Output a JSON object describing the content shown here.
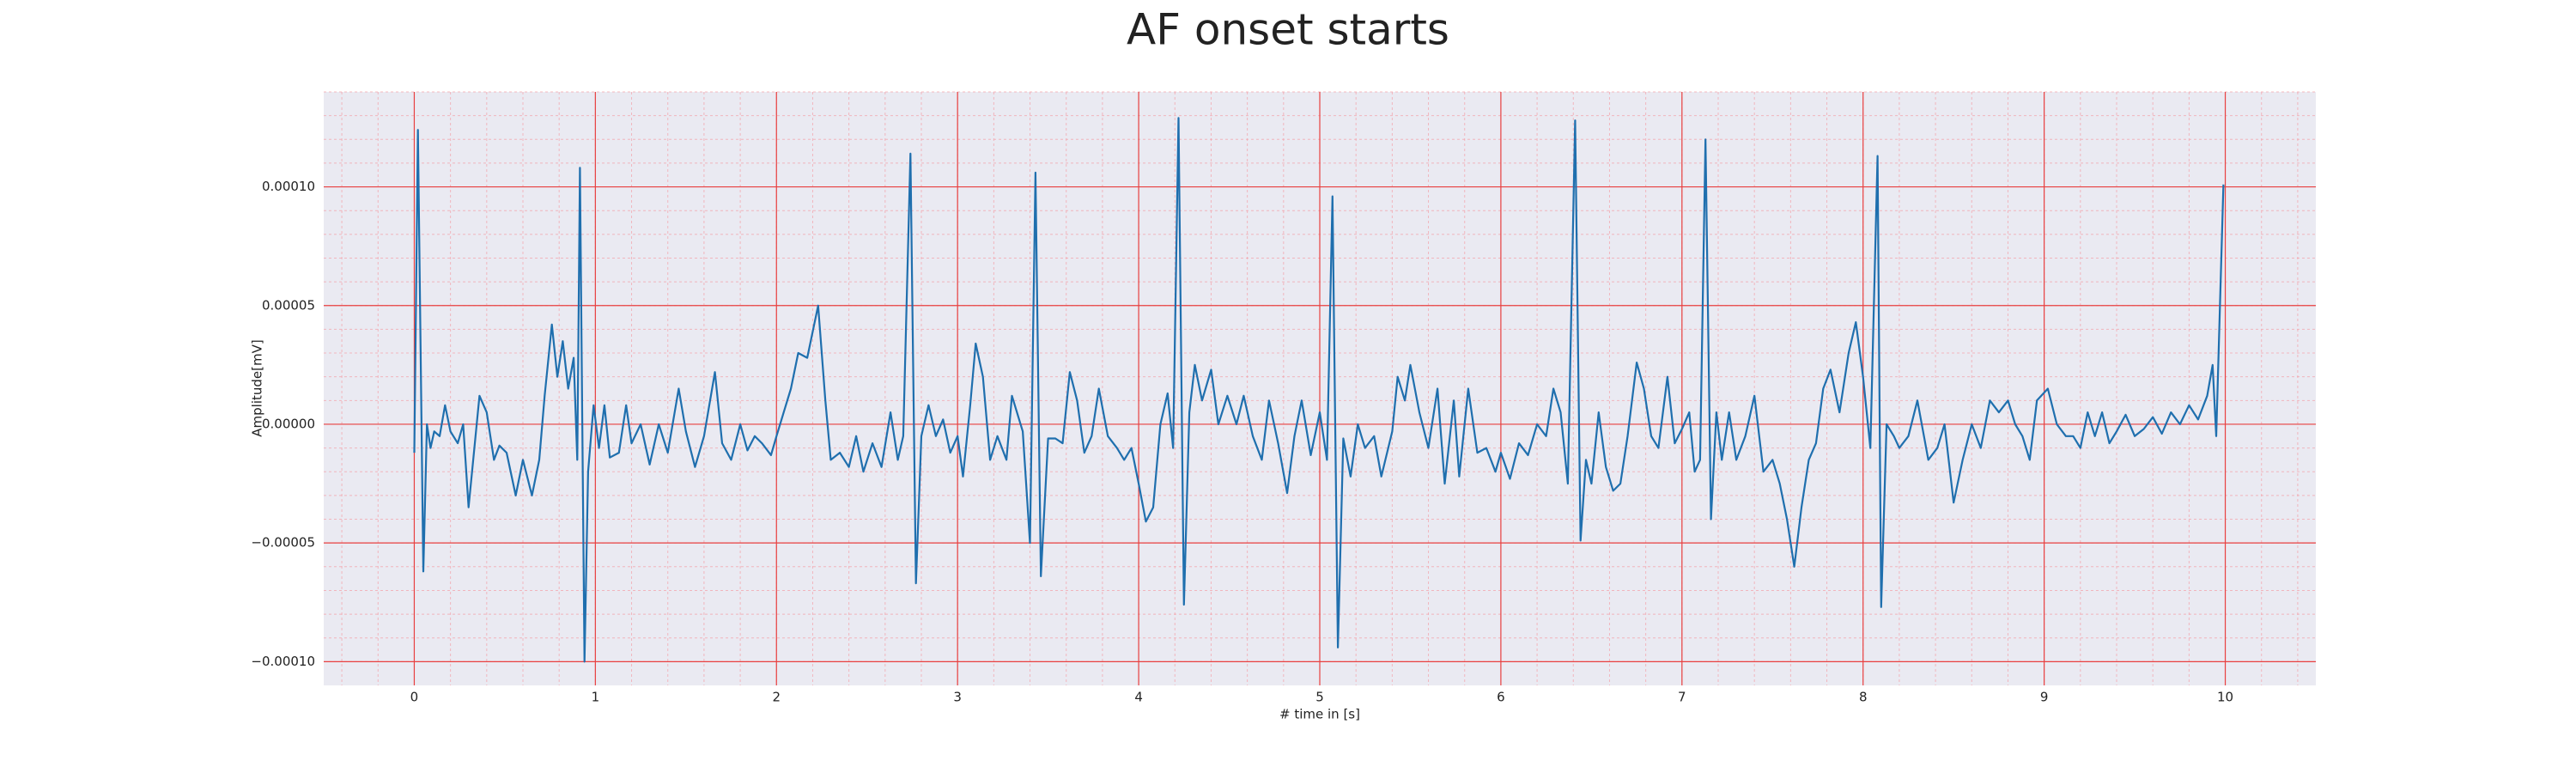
{
  "chart_data": {
    "type": "line",
    "title": "AF onset starts",
    "xlabel": "# time in [s]",
    "ylabel": "Amplitude[mV]",
    "color": "#1f6fae",
    "grid": true,
    "minor_grid": true,
    "xlim": [
      -0.5,
      10.5
    ],
    "ylim": [
      -0.00011,
      0.00014
    ],
    "xticks": [
      0,
      1,
      2,
      3,
      4,
      5,
      6,
      7,
      8,
      9,
      10
    ],
    "yticks": [
      {
        "value": -0.0001,
        "label": "−0.00010"
      },
      {
        "value": -5e-05,
        "label": "−0.00005"
      },
      {
        "value": 0,
        "label": "0.00000"
      },
      {
        "value": 5e-05,
        "label": "0.00005"
      },
      {
        "value": 0.0001,
        "label": "0.00010"
      }
    ],
    "x": [
      0,
      0.02,
      0.05,
      0.07,
      0.09,
      0.11,
      0.14,
      0.17,
      0.2,
      0.24,
      0.27,
      0.3,
      0.36,
      0.4,
      0.44,
      0.47,
      0.51,
      0.56,
      0.6,
      0.65,
      0.69,
      0.72,
      0.76,
      0.79,
      0.82,
      0.85,
      0.88,
      0.9,
      0.915,
      0.94,
      0.96,
      0.99,
      1.02,
      1.05,
      1.08,
      1.13,
      1.17,
      1.2,
      1.25,
      1.3,
      1.35,
      1.4,
      1.46,
      1.5,
      1.55,
      1.6,
      1.66,
      1.7,
      1.75,
      1.8,
      1.84,
      1.88,
      1.92,
      1.97,
      2.0,
      2.04,
      2.08,
      2.12,
      2.17,
      2.23,
      2.27,
      2.3,
      2.35,
      2.4,
      2.44,
      2.48,
      2.53,
      2.58,
      2.63,
      2.67,
      2.7,
      2.74,
      2.77,
      2.8,
      2.84,
      2.88,
      2.92,
      2.96,
      3.0,
      3.03,
      3.07,
      3.1,
      3.14,
      3.18,
      3.22,
      3.27,
      3.3,
      3.36,
      3.4,
      3.43,
      3.46,
      3.5,
      3.54,
      3.58,
      3.62,
      3.66,
      3.7,
      3.74,
      3.78,
      3.83,
      3.88,
      3.92,
      3.96,
      4.0,
      4.04,
      4.08,
      4.12,
      4.16,
      4.19,
      4.22,
      4.25,
      4.28,
      4.31,
      4.35,
      4.4,
      4.44,
      4.49,
      4.54,
      4.58,
      4.63,
      4.68,
      4.72,
      4.77,
      4.82,
      4.86,
      4.9,
      4.95,
      5.0,
      5.04,
      5.07,
      5.1,
      5.13,
      5.17,
      5.21,
      5.25,
      5.3,
      5.34,
      5.4,
      5.43,
      5.47,
      5.5,
      5.55,
      5.6,
      5.65,
      5.69,
      5.74,
      5.77,
      5.82,
      5.87,
      5.92,
      5.97,
      6.0,
      6.05,
      6.1,
      6.15,
      6.2,
      6.25,
      6.29,
      6.33,
      6.37,
      6.41,
      6.44,
      6.47,
      6.5,
      6.54,
      6.58,
      6.62,
      6.66,
      6.7,
      6.75,
      6.79,
      6.83,
      6.87,
      6.92,
      6.96,
      7.0,
      7.04,
      7.07,
      7.1,
      7.13,
      7.16,
      7.19,
      7.22,
      7.26,
      7.3,
      7.35,
      7.4,
      7.45,
      7.5,
      7.54,
      7.58,
      7.62,
      7.66,
      7.7,
      7.74,
      7.78,
      7.82,
      7.87,
      7.92,
      7.96,
      8.0,
      8.04,
      8.08,
      8.1,
      8.13,
      8.17,
      8.2,
      8.25,
      8.3,
      8.36,
      8.41,
      8.45,
      8.5,
      8.55,
      8.6,
      8.65,
      8.7,
      8.75,
      8.8,
      8.84,
      8.88,
      8.92,
      8.96,
      9.02,
      9.07,
      9.12,
      9.16,
      9.2,
      9.24,
      9.28,
      9.32,
      9.36,
      9.4,
      9.45,
      9.5,
      9.55,
      9.6,
      9.65,
      9.7,
      9.75,
      9.8,
      9.85,
      9.9,
      9.93,
      9.95,
      9.99
    ],
    "values": [
      -1.2e-05,
      0.000124,
      -6.2e-05,
      0,
      -1e-05,
      -3e-06,
      -5e-06,
      8e-06,
      -3e-06,
      -8e-06,
      0,
      -3.5e-05,
      1.2e-05,
      5e-06,
      -1.5e-05,
      -9e-06,
      -1.2e-05,
      -3e-05,
      -1.5e-05,
      -3e-05,
      -1.5e-05,
      1.2e-05,
      4.2e-05,
      2e-05,
      3.5e-05,
      1.5e-05,
      2.8e-05,
      -1.5e-05,
      0.000108,
      -0.0001,
      -2e-05,
      8e-06,
      -1e-05,
      8e-06,
      -1.4e-05,
      -1.2e-05,
      8e-06,
      -8e-06,
      0,
      -1.7e-05,
      0,
      -1.2e-05,
      1.5e-05,
      -3e-06,
      -1.8e-05,
      -5e-06,
      2.2e-05,
      -8e-06,
      -1.5e-05,
      0,
      -1.1e-05,
      -5e-06,
      -8e-06,
      -1.3e-05,
      -5e-06,
      5e-06,
      1.5e-05,
      3e-05,
      2.8e-05,
      5e-05,
      1e-05,
      -1.5e-05,
      -1.2e-05,
      -1.8e-05,
      -5e-06,
      -2e-05,
      -8e-06,
      -1.8e-05,
      5e-06,
      -1.5e-05,
      -5e-06,
      0.000114,
      -6.7e-05,
      -5e-06,
      8e-06,
      -5e-06,
      2e-06,
      -1.2e-05,
      -5e-06,
      -2.2e-05,
      8e-06,
      3.4e-05,
      2e-05,
      -1.5e-05,
      -5e-06,
      -1.5e-05,
      1.2e-05,
      -3e-06,
      -5e-05,
      0.000106,
      -6.4e-05,
      -6e-06,
      -6e-06,
      -8e-06,
      2.2e-05,
      1e-05,
      -1.2e-05,
      -5e-06,
      1.5e-05,
      -5e-06,
      -1e-05,
      -1.5e-05,
      -1e-05,
      -2.5e-05,
      -4.1e-05,
      -3.5e-05,
      0,
      1.3e-05,
      -1e-05,
      0.000129,
      -7.6e-05,
      5e-06,
      2.5e-05,
      1e-05,
      2.3e-05,
      0,
      1.2e-05,
      0,
      1.2e-05,
      -5e-06,
      -1.5e-05,
      1e-05,
      -8e-06,
      -2.9e-05,
      -5e-06,
      1e-05,
      -1.3e-05,
      5e-06,
      -1.5e-05,
      9.6e-05,
      -9.4e-05,
      -6e-06,
      -2.2e-05,
      0,
      -1e-05,
      -5e-06,
      -2.2e-05,
      -3e-06,
      2e-05,
      1e-05,
      2.5e-05,
      5e-06,
      -1e-05,
      1.5e-05,
      -2.5e-05,
      1e-05,
      -2.2e-05,
      1.5e-05,
      -1.2e-05,
      -1e-05,
      -2e-05,
      -1.2e-05,
      -2.3e-05,
      -8e-06,
      -1.3e-05,
      0,
      -5e-06,
      1.5e-05,
      5e-06,
      -2.5e-05,
      0.000128,
      -4.9e-05,
      -1.5e-05,
      -2.5e-05,
      5e-06,
      -1.8e-05,
      -2.8e-05,
      -2.5e-05,
      -5e-06,
      2.6e-05,
      1.5e-05,
      -5e-06,
      -1e-05,
      2e-05,
      -8e-06,
      -2e-06,
      5e-06,
      -2e-05,
      -1.5e-05,
      0.00012,
      -4e-05,
      5e-06,
      -1.5e-05,
      5e-06,
      -1.5e-05,
      -5e-06,
      1.2e-05,
      -2e-05,
      -1.5e-05,
      -2.5e-05,
      -4e-05,
      -6e-05,
      -3.5e-05,
      -1.5e-05,
      -8e-06,
      1.5e-05,
      2.3e-05,
      5e-06,
      3e-05,
      4.3e-05,
      2e-05,
      -1e-05,
      0.000113,
      -7.7e-05,
      0,
      -5e-06,
      -1e-05,
      -5e-06,
      1e-05,
      -1.5e-05,
      -1e-05,
      0,
      -3.3e-05,
      -1.5e-05,
      0,
      -1e-05,
      1e-05,
      5e-06,
      1e-05,
      0,
      -5e-06,
      -1.5e-05,
      1e-05,
      1.5e-05,
      0,
      -5e-06,
      -5e-06,
      -1e-05,
      5e-06,
      -5e-06,
      5e-06,
      -8e-06,
      -3e-06,
      4e-06,
      -5e-06,
      -2e-06,
      3e-06,
      -4e-06,
      5e-06,
      0,
      8e-06,
      2e-06,
      1.2e-05,
      2.5e-05,
      -5e-06,
      0.000101
    ]
  }
}
